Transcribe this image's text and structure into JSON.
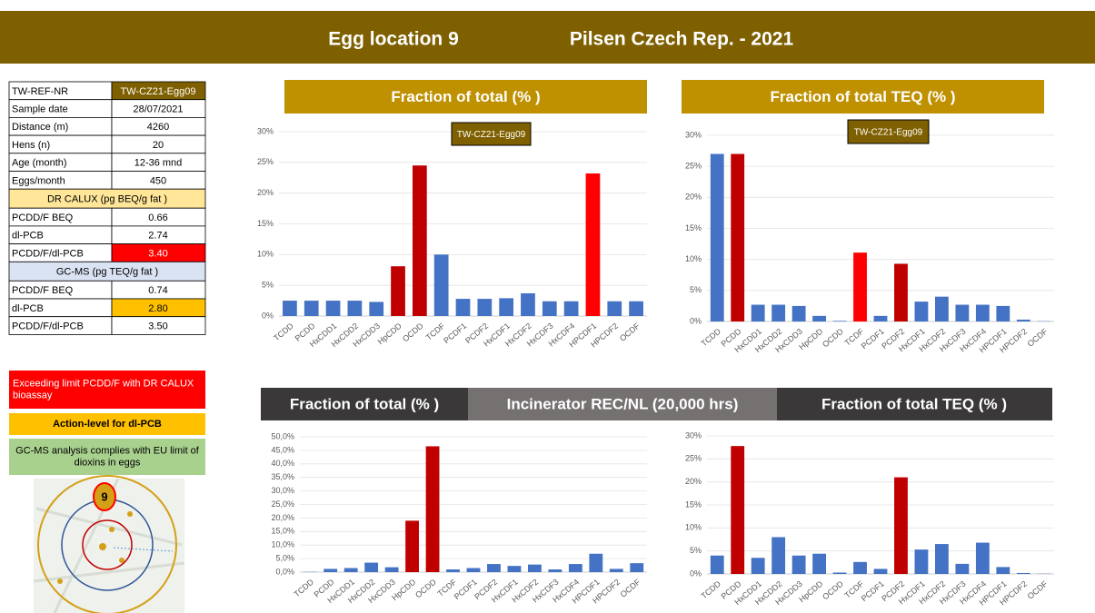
{
  "header": {
    "location": "Egg location 9",
    "place": "Pilsen Czech Rep.  -  2021"
  },
  "table": {
    "rows": [
      [
        "TW-REF-NR",
        "TW-CZ21-Egg09"
      ],
      [
        "Sample date",
        "28/07/2021"
      ],
      [
        "Distance (m)",
        "4260"
      ],
      [
        "Hens (n)",
        "20"
      ],
      [
        "Age (month)",
        "12-36 mnd"
      ],
      [
        "Eggs/month",
        "450"
      ],
      [
        "DR CALUX  (pg BEQ/g fat )"
      ],
      [
        "PCDD/F BEQ",
        "0.66"
      ],
      [
        "dl-PCB",
        "2.74"
      ],
      [
        "PCDD/F/dl-PCB",
        "3.40"
      ],
      [
        "GC-MS  (pg TEQ/g fat )"
      ],
      [
        "PCDD/F BEQ",
        "0.74"
      ],
      [
        "dl-PCB",
        "2.80"
      ],
      [
        "PCDD/F/dl-PCB",
        "3.50"
      ]
    ]
  },
  "notes": [
    "Exceeding limit PCDD/F with DR CALUX bioassay",
    "Action-level for dl-PCB",
    "GC-MS analysis complies with EU limit of dioxins in eggs"
  ],
  "map": {
    "label": "9"
  },
  "reference_banner": "Incinerator REC/NL (20,000 hrs)",
  "chart_data": [
    {
      "type": "bar",
      "title": "Fraction of total (% )",
      "annotation": "TW-CZ21-Egg09",
      "categories": [
        "TCDD",
        "PCDD",
        "HxCDD1",
        "HxCDD2",
        "HxCDD3",
        "HpCDD",
        "OCDD",
        "TCDF",
        "PCDF1",
        "PCDF2",
        "HxCDF1",
        "HxCDF2",
        "HxCDF3",
        "HxCDF4",
        "HPCDF1",
        "HPCDF2",
        "OCDF"
      ],
      "values": [
        2.5,
        2.5,
        2.5,
        2.5,
        2.3,
        8.1,
        24.5,
        10,
        2.8,
        2.8,
        2.9,
        3.7,
        2.4,
        2.4,
        23.2,
        2.4,
        2.4
      ],
      "colors": [
        "#4472c4",
        "#4472c4",
        "#4472c4",
        "#4472c4",
        "#4472c4",
        "#c00000",
        "#c00000",
        "#4472c4",
        "#4472c4",
        "#4472c4",
        "#4472c4",
        "#4472c4",
        "#4472c4",
        "#4472c4",
        "#ff0000",
        "#4472c4",
        "#4472c4"
      ],
      "ylim": [
        0,
        30
      ],
      "yticks": [
        {
          "value": 0,
          "label": "0%"
        },
        {
          "value": 5,
          "label": "5%"
        },
        {
          "value": 10,
          "label": "10%"
        },
        {
          "value": 15,
          "label": "15%"
        },
        {
          "value": 20,
          "label": "20%"
        },
        {
          "value": 25,
          "label": "25%"
        },
        {
          "value": 30,
          "label": "30%"
        }
      ],
      "grid": true
    },
    {
      "type": "bar",
      "title": "Fraction of total TEQ (% )",
      "annotation": "TW-CZ21-Egg09",
      "categories": [
        "TCDD",
        "PCDD",
        "HxCDD1",
        "HxCDD2",
        "HxCDD3",
        "HpCDD",
        "OCDD",
        "TCDF",
        "PCDF1",
        "PCDF2",
        "HxCDF1",
        "HxCDF2",
        "HxCDF3",
        "HxCDF4",
        "HPCDF1",
        "HPCDF2",
        "OCDF"
      ],
      "values": [
        27,
        27,
        2.7,
        2.7,
        2.5,
        0.9,
        0.1,
        11.1,
        0.9,
        9.3,
        3.2,
        4.0,
        2.7,
        2.7,
        2.5,
        0.3,
        0.05
      ],
      "colors": [
        "#4472c4",
        "#c00000",
        "#4472c4",
        "#4472c4",
        "#4472c4",
        "#4472c4",
        "#4472c4",
        "#ff0000",
        "#4472c4",
        "#c00000",
        "#4472c4",
        "#4472c4",
        "#4472c4",
        "#4472c4",
        "#4472c4",
        "#4472c4",
        "#4472c4"
      ],
      "ylim": [
        0,
        30
      ],
      "yticks": [
        {
          "value": 0,
          "label": "0%"
        },
        {
          "value": 5,
          "label": "5%"
        },
        {
          "value": 10,
          "label": "10%"
        },
        {
          "value": 15,
          "label": "15%"
        },
        {
          "value": 20,
          "label": "20%"
        },
        {
          "value": 25,
          "label": "25%"
        },
        {
          "value": 30,
          "label": "30%"
        }
      ],
      "grid": true
    },
    {
      "type": "bar",
      "title": "Fraction of total (% )",
      "categories": [
        "TCDD",
        "PCDD",
        "HxCDD1",
        "HxCDD2",
        "HxCDD3",
        "HpCDD",
        "OCDD",
        "TCDF",
        "PCDF1",
        "PCDF2",
        "HxCDF1",
        "HxCDF2",
        "HxCDF3",
        "HxCDF4",
        "HPCDF1",
        "HPCDF2",
        "OCDF"
      ],
      "values": [
        0.1,
        1.2,
        1.5,
        3.5,
        1.8,
        19,
        46.5,
        1.0,
        1.5,
        3.0,
        2.3,
        2.8,
        1.0,
        3.0,
        6.8,
        1.2,
        3.3
      ],
      "colors": [
        "#4472c4",
        "#4472c4",
        "#4472c4",
        "#4472c4",
        "#4472c4",
        "#c00000",
        "#c00000",
        "#4472c4",
        "#4472c4",
        "#4472c4",
        "#4472c4",
        "#4472c4",
        "#4472c4",
        "#4472c4",
        "#4472c4",
        "#4472c4",
        "#4472c4"
      ],
      "ylim": [
        0,
        50
      ],
      "yticks": [
        {
          "value": 0,
          "label": "0,0%"
        },
        {
          "value": 5,
          "label": "5,0%"
        },
        {
          "value": 10,
          "label": "10,0%"
        },
        {
          "value": 15,
          "label": "15,0%"
        },
        {
          "value": 20,
          "label": "20,0%"
        },
        {
          "value": 25,
          "label": "25,0%"
        },
        {
          "value": 30,
          "label": "30,0%"
        },
        {
          "value": 35,
          "label": "35,0%"
        },
        {
          "value": 40,
          "label": "40,0%"
        },
        {
          "value": 45,
          "label": "45,0%"
        },
        {
          "value": 50,
          "label": "50,0%"
        }
      ],
      "grid": true
    },
    {
      "type": "bar",
      "title": "Fraction of total TEQ (% )",
      "categories": [
        "TCDD",
        "PCDD",
        "HxCDD1",
        "HxCDD2",
        "HxCDD3",
        "HpCDD",
        "OCDD",
        "TCDF",
        "PCDF1",
        "PCDF2",
        "HxCDF1",
        "HxCDF2",
        "HxCDF3",
        "HxCDF4",
        "HPCDF1",
        "HPCDF2",
        "OCDF"
      ],
      "values": [
        4,
        27.8,
        3.5,
        8,
        4,
        4.4,
        0.3,
        2.6,
        1.1,
        21,
        5.3,
        6.5,
        2.2,
        6.8,
        1.5,
        0.2,
        0.05
      ],
      "colors": [
        "#4472c4",
        "#c00000",
        "#4472c4",
        "#4472c4",
        "#4472c4",
        "#4472c4",
        "#4472c4",
        "#4472c4",
        "#4472c4",
        "#c00000",
        "#4472c4",
        "#4472c4",
        "#4472c4",
        "#4472c4",
        "#4472c4",
        "#4472c4",
        "#4472c4"
      ],
      "ylim": [
        0,
        30
      ],
      "yticks": [
        {
          "value": 0,
          "label": "0%"
        },
        {
          "value": 5,
          "label": "5%"
        },
        {
          "value": 10,
          "label": "10%"
        },
        {
          "value": 15,
          "label": "15%"
        },
        {
          "value": 20,
          "label": "20%"
        },
        {
          "value": 25,
          "label": "25%"
        },
        {
          "value": 30,
          "label": "30%"
        }
      ],
      "grid": true
    }
  ]
}
